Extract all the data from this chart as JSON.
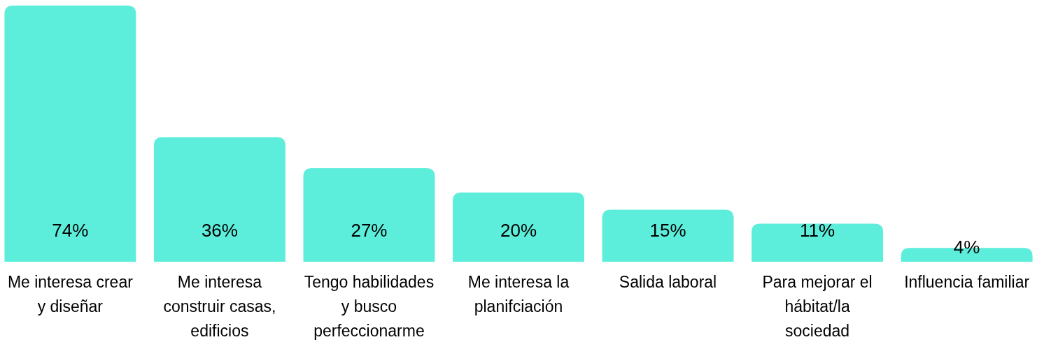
{
  "chart_data": {
    "type": "bar",
    "categories": [
      "Me interesa crear y diseñar",
      "Me interesa construir casas, edificios",
      "Tengo habilidades y busco perfeccionarme",
      "Me interesa la planifciación",
      "Salida laboral",
      "Para mejorar el hábitat/la sociedad",
      "Influencia familiar"
    ],
    "values": [
      74,
      36,
      27,
      20,
      15,
      11,
      4
    ],
    "value_labels": [
      "74%",
      "36%",
      "27%",
      "20%",
      "15%",
      "11%",
      "4%"
    ],
    "color": "#5ceedb"
  }
}
